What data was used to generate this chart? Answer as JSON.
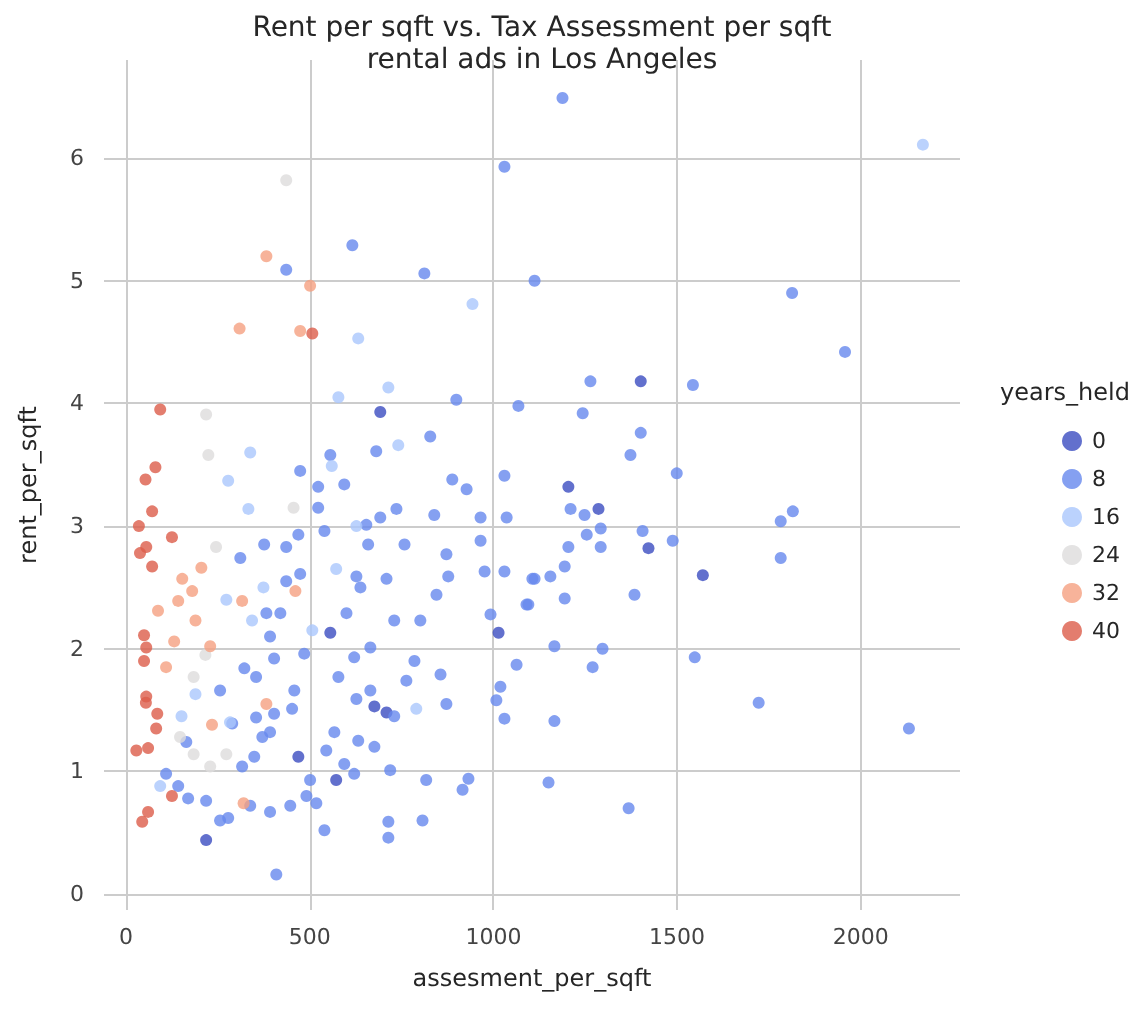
{
  "chart_data": {
    "type": "scatter",
    "title": "Rent per sqft vs. Tax Assessment per sqft",
    "subtitle": "rental ads in Los Angeles",
    "xlabel": "assesment_per_sqft",
    "ylabel": "rent_per_sqft",
    "legend_title": "years_held",
    "legend": "right",
    "grid": true,
    "marker": "circle",
    "xlim": [
      -60,
      2270
    ],
    "ylim": [
      -0.13,
      6.8
    ],
    "xticks": [
      0,
      500,
      1000,
      1500,
      2000
    ],
    "yticks": [
      0,
      1,
      2,
      3,
      4,
      5,
      6
    ],
    "series": [
      {
        "name": "0",
        "color": "#3b4cc0",
        "x": [
          1014,
          556,
          1286,
          1422,
          1570,
          676,
          709,
          218,
          469,
          572,
          1204,
          1401,
          692
        ],
        "values": [
          2.13,
          2.13,
          3.14,
          2.82,
          2.6,
          1.53,
          1.48,
          0.44,
          1.12,
          0.93,
          3.32,
          4.18,
          3.93
        ]
      },
      {
        "name": "8",
        "color": "#6788ee",
        "x": [
          1030,
          616,
          436,
          812,
          1112,
          1188,
          1264,
          1543,
          1813,
          1957,
          1243,
          1401,
          1373,
          1499,
          1068,
          899,
          828,
          681,
          556,
          474,
          1210,
          1248,
          1406,
          1292,
          1782,
          1815,
          1204,
          1292,
          1488,
          1254,
          1194,
          1112,
          1155,
          1782,
          1095,
          1194,
          1384,
          1166,
          1297,
          1270,
          1548,
          1722,
          2131,
          1166,
          1150,
          1368,
          523,
          594,
          523,
          736,
          888,
          927,
          1030,
          1036,
          965,
          839,
          692,
          654,
          540,
          469,
          436,
          376,
          311,
          659,
          758,
          872,
          965,
          976,
          1030,
          877,
          709,
          627,
          638,
          474,
          436,
          845,
          730,
          801,
          600,
          382,
          420,
          992,
          392,
          621,
          665,
          785,
          856,
          1063,
          1019,
          763,
          578,
          485,
          403,
          256,
          322,
          354,
          458,
          665,
          627,
          730,
          872,
          1008,
          1030,
          452,
          403,
          354,
          289,
          392,
          567,
          632,
          371,
          164,
          545,
          349,
          316,
          594,
          676,
          719,
          501,
          621,
          491,
          817,
          916,
          932,
          109,
          142,
          169,
          218,
          338,
          392,
          447,
          518,
          256,
          278,
          540,
          714,
          714,
          807,
          409,
          1090,
          1106
        ],
        "values": [
          5.93,
          5.29,
          5.09,
          5.06,
          5.0,
          6.49,
          4.18,
          4.15,
          4.9,
          4.42,
          3.92,
          3.76,
          3.58,
          3.43,
          3.98,
          4.03,
          3.73,
          3.61,
          3.58,
          3.45,
          3.14,
          3.09,
          2.96,
          2.98,
          3.04,
          3.12,
          2.83,
          2.83,
          2.88,
          2.93,
          2.67,
          2.57,
          2.59,
          2.74,
          2.36,
          2.41,
          2.44,
          2.02,
          2.0,
          1.85,
          1.93,
          1.56,
          1.35,
          1.41,
          0.91,
          0.7,
          3.32,
          3.34,
          3.15,
          3.14,
          3.38,
          3.3,
          3.41,
          3.07,
          3.07,
          3.09,
          3.07,
          3.01,
          2.96,
          2.93,
          2.83,
          2.85,
          2.74,
          2.85,
          2.85,
          2.77,
          2.88,
          2.63,
          2.63,
          2.59,
          2.57,
          2.59,
          2.5,
          2.61,
          2.55,
          2.44,
          2.23,
          2.23,
          2.29,
          2.29,
          2.29,
          2.28,
          2.1,
          1.93,
          2.01,
          1.9,
          1.79,
          1.87,
          1.69,
          1.74,
          1.77,
          1.96,
          1.92,
          1.66,
          1.84,
          1.77,
          1.66,
          1.66,
          1.59,
          1.45,
          1.55,
          1.58,
          1.43,
          1.51,
          1.47,
          1.44,
          1.39,
          1.32,
          1.32,
          1.25,
          1.28,
          1.24,
          1.17,
          1.12,
          1.04,
          1.06,
          1.2,
          1.01,
          0.93,
          0.98,
          0.8,
          0.93,
          0.85,
          0.94,
          0.98,
          0.88,
          0.78,
          0.76,
          0.72,
          0.67,
          0.72,
          0.74,
          0.6,
          0.62,
          0.52,
          0.59,
          0.46,
          0.6,
          0.16,
          2.36,
          2.57
        ]
      },
      {
        "name": "16",
        "color": "#aac7fd",
        "x": [
          338,
          560,
          632,
          714,
          741,
          943,
          578,
          2169,
          278,
          333,
          627,
          572,
          374,
          273,
          343,
          507,
          189,
          151,
          790,
          93,
          283
        ],
        "values": [
          3.6,
          3.49,
          4.53,
          4.13,
          3.66,
          4.81,
          4.05,
          6.11,
          3.37,
          3.14,
          3.0,
          2.65,
          2.5,
          2.4,
          2.23,
          2.15,
          1.63,
          1.45,
          1.51,
          0.88,
          1.4
        ]
      },
      {
        "name": "24",
        "color": "#dddcdc",
        "x": [
          436,
          218,
          224,
          456,
          245,
          184,
          216,
          147,
          184,
          229,
          273
        ],
        "values": [
          5.82,
          3.91,
          3.58,
          3.15,
          2.83,
          1.77,
          1.95,
          1.28,
          1.14,
          1.04,
          1.14
        ]
      },
      {
        "name": "32",
        "color": "#f5a081",
        "x": [
          382,
          501,
          309,
          474,
          205,
          153,
          180,
          142,
          316,
          461,
          189,
          131,
          229,
          109,
          382,
          234,
          320,
          87
        ],
        "values": [
          5.2,
          4.96,
          4.61,
          4.59,
          2.66,
          2.57,
          2.47,
          2.39,
          2.39,
          2.47,
          2.23,
          2.06,
          2.02,
          1.85,
          1.55,
          1.38,
          0.74,
          2.31
        ]
      },
      {
        "name": "40",
        "color": "#dc5d4a",
        "x": [
          507,
          80,
          53,
          71,
          35,
          125,
          55,
          38,
          71,
          49,
          55,
          49,
          55,
          54,
          82,
          85,
          28,
          60,
          125,
          60,
          44,
          93
        ],
        "values": [
          4.57,
          3.48,
          3.38,
          3.12,
          3.0,
          2.91,
          2.83,
          2.78,
          2.67,
          2.11,
          2.01,
          1.9,
          1.61,
          1.56,
          1.35,
          1.47,
          1.17,
          1.19,
          0.8,
          0.67,
          0.59,
          3.95
        ]
      }
    ]
  }
}
